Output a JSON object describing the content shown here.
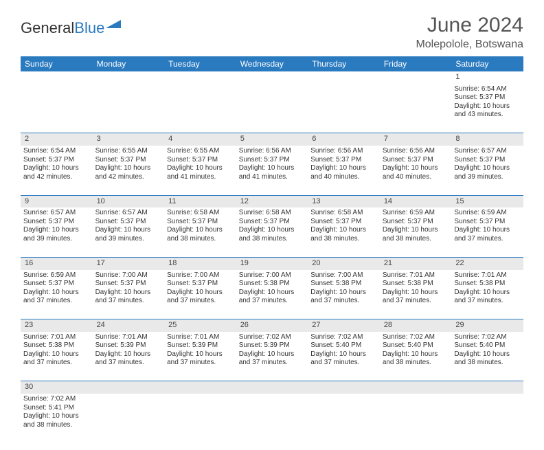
{
  "logo": {
    "part1": "General",
    "part2": "Blue"
  },
  "title": "June 2024",
  "location": "Molepolole, Botswana",
  "day_headers": [
    "Sunday",
    "Monday",
    "Tuesday",
    "Wednesday",
    "Thursday",
    "Friday",
    "Saturday"
  ],
  "colors": {
    "header_bg": "#2a7ac0",
    "header_fg": "#ffffff",
    "daynum_bg": "#e9e9e9",
    "border": "#2a7ac0",
    "text": "#333333"
  },
  "weeks": [
    [
      null,
      null,
      null,
      null,
      null,
      null,
      {
        "n": "1",
        "sr": "6:54 AM",
        "ss": "5:37 PM",
        "dl": "10 hours and 43 minutes."
      }
    ],
    [
      {
        "n": "2",
        "sr": "6:54 AM",
        "ss": "5:37 PM",
        "dl": "10 hours and 42 minutes."
      },
      {
        "n": "3",
        "sr": "6:55 AM",
        "ss": "5:37 PM",
        "dl": "10 hours and 42 minutes."
      },
      {
        "n": "4",
        "sr": "6:55 AM",
        "ss": "5:37 PM",
        "dl": "10 hours and 41 minutes."
      },
      {
        "n": "5",
        "sr": "6:56 AM",
        "ss": "5:37 PM",
        "dl": "10 hours and 41 minutes."
      },
      {
        "n": "6",
        "sr": "6:56 AM",
        "ss": "5:37 PM",
        "dl": "10 hours and 40 minutes."
      },
      {
        "n": "7",
        "sr": "6:56 AM",
        "ss": "5:37 PM",
        "dl": "10 hours and 40 minutes."
      },
      {
        "n": "8",
        "sr": "6:57 AM",
        "ss": "5:37 PM",
        "dl": "10 hours and 39 minutes."
      }
    ],
    [
      {
        "n": "9",
        "sr": "6:57 AM",
        "ss": "5:37 PM",
        "dl": "10 hours and 39 minutes."
      },
      {
        "n": "10",
        "sr": "6:57 AM",
        "ss": "5:37 PM",
        "dl": "10 hours and 39 minutes."
      },
      {
        "n": "11",
        "sr": "6:58 AM",
        "ss": "5:37 PM",
        "dl": "10 hours and 38 minutes."
      },
      {
        "n": "12",
        "sr": "6:58 AM",
        "ss": "5:37 PM",
        "dl": "10 hours and 38 minutes."
      },
      {
        "n": "13",
        "sr": "6:58 AM",
        "ss": "5:37 PM",
        "dl": "10 hours and 38 minutes."
      },
      {
        "n": "14",
        "sr": "6:59 AM",
        "ss": "5:37 PM",
        "dl": "10 hours and 38 minutes."
      },
      {
        "n": "15",
        "sr": "6:59 AM",
        "ss": "5:37 PM",
        "dl": "10 hours and 37 minutes."
      }
    ],
    [
      {
        "n": "16",
        "sr": "6:59 AM",
        "ss": "5:37 PM",
        "dl": "10 hours and 37 minutes."
      },
      {
        "n": "17",
        "sr": "7:00 AM",
        "ss": "5:37 PM",
        "dl": "10 hours and 37 minutes."
      },
      {
        "n": "18",
        "sr": "7:00 AM",
        "ss": "5:37 PM",
        "dl": "10 hours and 37 minutes."
      },
      {
        "n": "19",
        "sr": "7:00 AM",
        "ss": "5:38 PM",
        "dl": "10 hours and 37 minutes."
      },
      {
        "n": "20",
        "sr": "7:00 AM",
        "ss": "5:38 PM",
        "dl": "10 hours and 37 minutes."
      },
      {
        "n": "21",
        "sr": "7:01 AM",
        "ss": "5:38 PM",
        "dl": "10 hours and 37 minutes."
      },
      {
        "n": "22",
        "sr": "7:01 AM",
        "ss": "5:38 PM",
        "dl": "10 hours and 37 minutes."
      }
    ],
    [
      {
        "n": "23",
        "sr": "7:01 AM",
        "ss": "5:38 PM",
        "dl": "10 hours and 37 minutes."
      },
      {
        "n": "24",
        "sr": "7:01 AM",
        "ss": "5:39 PM",
        "dl": "10 hours and 37 minutes."
      },
      {
        "n": "25",
        "sr": "7:01 AM",
        "ss": "5:39 PM",
        "dl": "10 hours and 37 minutes."
      },
      {
        "n": "26",
        "sr": "7:02 AM",
        "ss": "5:39 PM",
        "dl": "10 hours and 37 minutes."
      },
      {
        "n": "27",
        "sr": "7:02 AM",
        "ss": "5:40 PM",
        "dl": "10 hours and 37 minutes."
      },
      {
        "n": "28",
        "sr": "7:02 AM",
        "ss": "5:40 PM",
        "dl": "10 hours and 38 minutes."
      },
      {
        "n": "29",
        "sr": "7:02 AM",
        "ss": "5:40 PM",
        "dl": "10 hours and 38 minutes."
      }
    ],
    [
      {
        "n": "30",
        "sr": "7:02 AM",
        "ss": "5:41 PM",
        "dl": "10 hours and 38 minutes."
      },
      null,
      null,
      null,
      null,
      null,
      null
    ]
  ],
  "labels": {
    "sunrise": "Sunrise:",
    "sunset": "Sunset:",
    "daylight": "Daylight:"
  }
}
